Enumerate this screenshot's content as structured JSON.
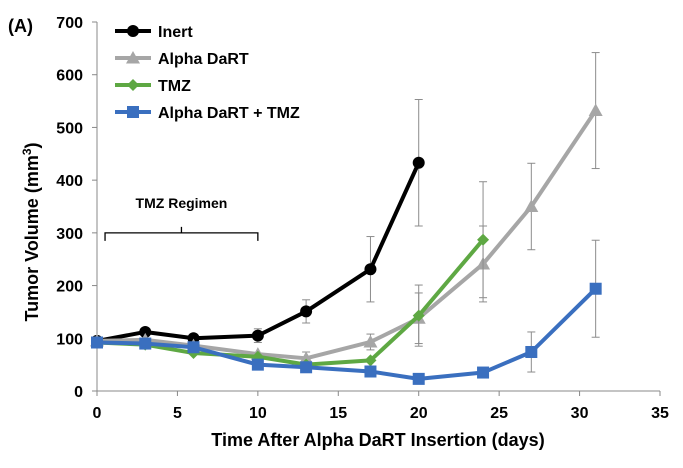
{
  "chart_data": {
    "type": "line",
    "panel_label": "(A)",
    "title": "",
    "xlabel": "Time After Alpha DaRT Insertion (days)",
    "ylabel_main": "Tumor Volume (mm",
    "ylabel_sup": "3",
    "ylabel_close": ")",
    "xlim": [
      0,
      35
    ],
    "ylim": [
      0,
      700
    ],
    "xticks": [
      0,
      5,
      10,
      15,
      20,
      25,
      30,
      35
    ],
    "yticks": [
      0,
      100,
      200,
      300,
      400,
      500,
      600,
      700
    ],
    "grid": false,
    "legend_position": "top-left",
    "annotation": {
      "text": "TMZ Regimen",
      "x_start": 0.5,
      "x_end": 10,
      "y": 300
    },
    "series": [
      {
        "name": "Inert",
        "color": "#000000",
        "marker": "circle",
        "x": [
          0,
          3,
          6,
          10,
          13,
          17,
          20
        ],
        "y": [
          95,
          112,
          100,
          105,
          151,
          231,
          433
        ],
        "err": [
          0,
          0,
          0,
          13,
          22,
          62,
          120
        ]
      },
      {
        "name": "Alpha DaRT",
        "color": "#a6a6a6",
        "marker": "triangle",
        "x": [
          0,
          3,
          6,
          10,
          13,
          17,
          20,
          24,
          27,
          31
        ],
        "y": [
          95,
          97,
          86,
          70,
          62,
          93,
          138,
          241,
          350,
          532
        ],
        "err": [
          0,
          0,
          0,
          0,
          12,
          15,
          48,
          72,
          82,
          110
        ]
      },
      {
        "name": "TMZ",
        "color": "#5ea843",
        "marker": "diamond",
        "x": [
          0,
          3,
          6,
          10,
          13,
          17,
          20,
          24
        ],
        "y": [
          92,
          88,
          72,
          65,
          50,
          58,
          143,
          287
        ],
        "err": [
          0,
          0,
          0,
          0,
          0,
          0,
          58,
          110
        ]
      },
      {
        "name": "Alpha DaRT + TMZ",
        "color": "#3a6fbf",
        "marker": "square",
        "x": [
          0,
          3,
          6,
          10,
          13,
          17,
          20,
          24,
          27,
          31
        ],
        "y": [
          92,
          90,
          83,
          50,
          45,
          37,
          23,
          35,
          74,
          194
        ],
        "err": [
          0,
          0,
          0,
          0,
          0,
          0,
          0,
          0,
          38,
          92
        ]
      }
    ]
  }
}
